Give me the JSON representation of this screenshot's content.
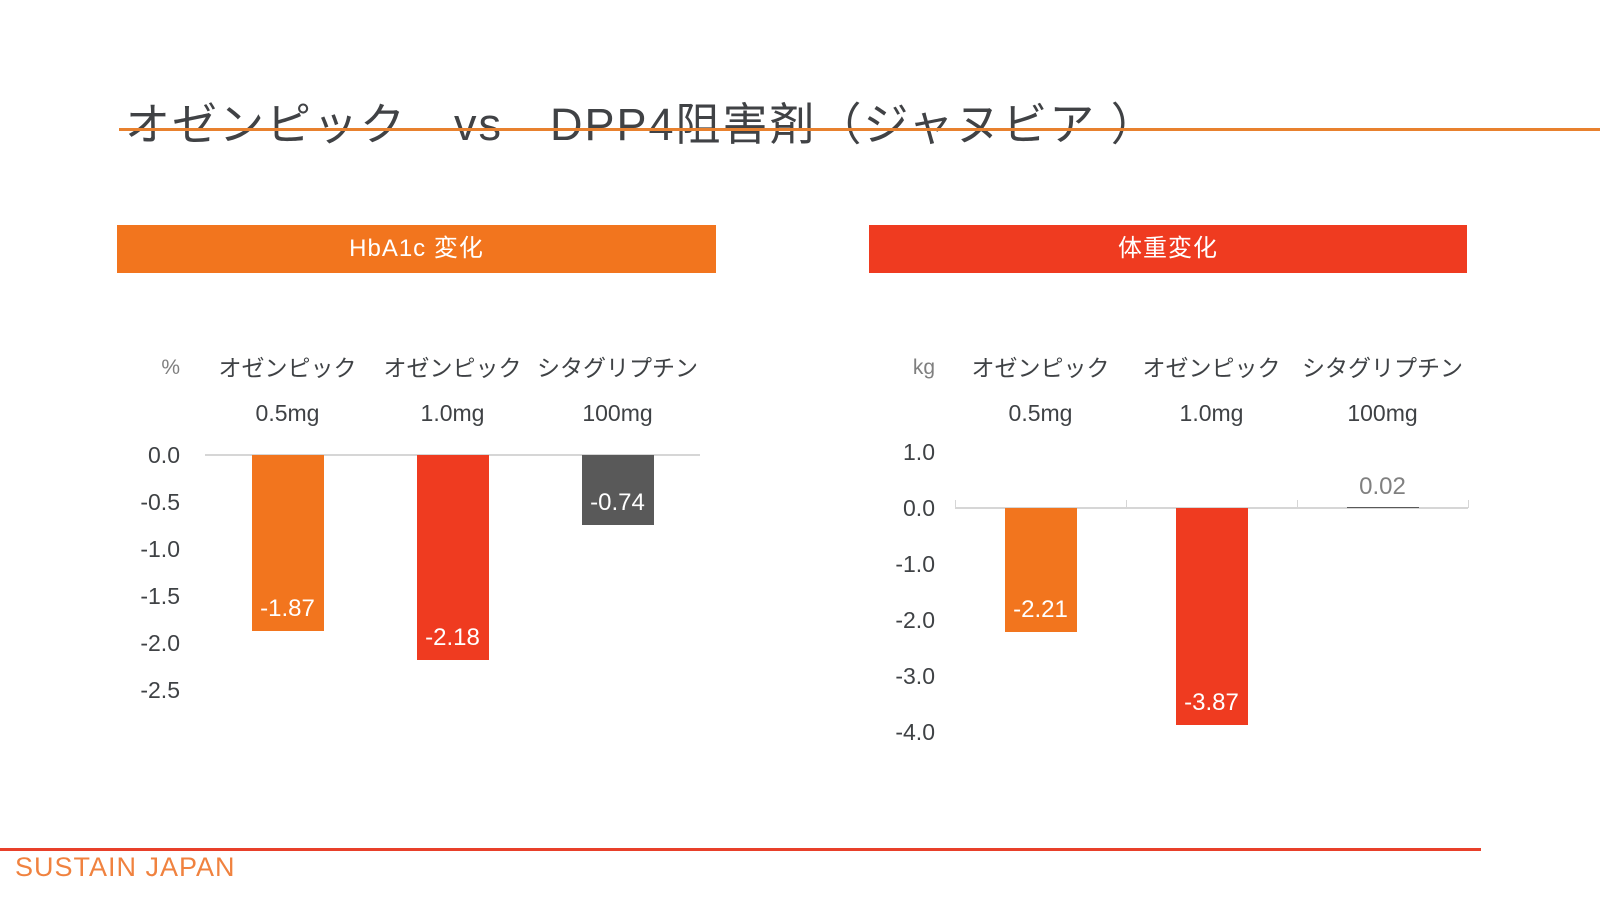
{
  "title": "オゼンピック　vs　DPP4阻害剤（ジャヌビア ）",
  "footer": {
    "brand": "SUSTAIN  JAPAN"
  },
  "colors": {
    "title_text": "#404245",
    "title_underline": "#E8812E",
    "orange": "#F2751E",
    "red": "#EF3B20",
    "dark_gray": "#595959",
    "axis_line": "#D6D6D6",
    "text_dark": "#3F4245",
    "text_gray": "#7F7F7F",
    "outside_label_gray": "#808080",
    "bar_label_white": "#FFFFFF",
    "footer_line": "#E8402A",
    "footer_text": "#F0823F"
  },
  "chart_data": [
    {
      "type": "bar",
      "title": "HbA1c 変化",
      "header_color": "#F2751E",
      "unit": "%",
      "categories": [
        "オゼンピック 0.5mg",
        "オゼンピック 1.0mg",
        "シタグリプチン 100mg"
      ],
      "category_line1": [
        "オゼンピック",
        "オゼンピック",
        "シタグリプチン"
      ],
      "category_line2": [
        "0.5mg",
        "1.0mg",
        "100mg"
      ],
      "values": [
        -1.87,
        -2.18,
        -0.74
      ],
      "value_labels": [
        "-1.87",
        "-2.18",
        "-0.74"
      ],
      "bar_colors": [
        "#F2751E",
        "#EF3B20",
        "#595959"
      ],
      "ytick_labels": [
        "0.0",
        "-0.5",
        "-1.0",
        "-1.5",
        "-2.0",
        "-2.5"
      ],
      "ylim": [
        0.0,
        -2.5
      ],
      "grid": false,
      "legend": false,
      "axis_boundary_ticks": false
    },
    {
      "type": "bar",
      "title": "体重変化",
      "header_color": "#EF3B20",
      "unit": "kg",
      "categories": [
        "オゼンピック 0.5mg",
        "オゼンピック 1.0mg",
        "シタグリプチン 100mg"
      ],
      "category_line1": [
        "オゼンピック",
        "オゼンピック",
        "シタグリプチン"
      ],
      "category_line2": [
        "0.5mg",
        "1.0mg",
        "100mg"
      ],
      "values": [
        -2.21,
        -3.87,
        0.02
      ],
      "value_labels": [
        "-2.21",
        "-3.87",
        "0.02"
      ],
      "bar_colors": [
        "#F2751E",
        "#EF3B20",
        "#595959"
      ],
      "ytick_labels": [
        "1.0",
        "0.0",
        "-1.0",
        "-2.0",
        "-3.0",
        "-4.0"
      ],
      "ylim": [
        1.0,
        -4.0
      ],
      "grid": false,
      "legend": false,
      "axis_boundary_ticks": true
    }
  ]
}
